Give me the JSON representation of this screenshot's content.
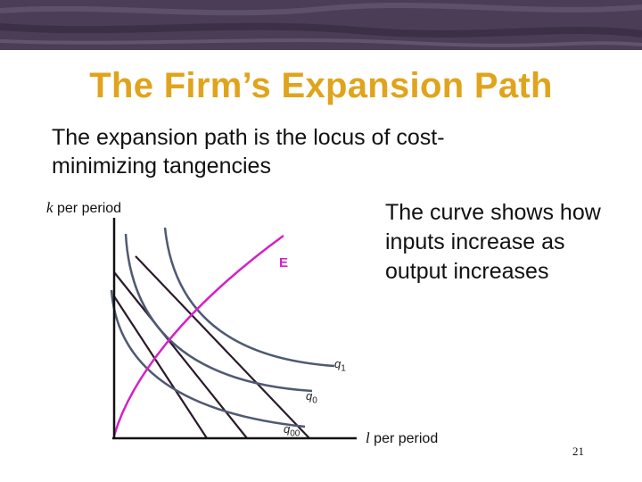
{
  "slide": {
    "title": "The Firm’s Expansion Path",
    "subtitle": "The expansion path is the locus of cost-minimizing tangencies",
    "callout": "The curve shows how inputs increase as output increases",
    "page_number": "21"
  },
  "diagram": {
    "y_axis_label_var": "k",
    "y_axis_label_rest": " per period",
    "x_axis_label_var": "l",
    "x_axis_label_rest": " per period",
    "expansion_path_label": "E",
    "isoquants": [
      {
        "var": "q",
        "sub": "00"
      },
      {
        "var": "q",
        "sub": "0"
      },
      {
        "var": "q",
        "sub": "1"
      }
    ],
    "colors": {
      "title": "#e0a41c",
      "isoquant": "#4f5a72",
      "isocost": "#2a1a2a",
      "expansion_path": "#d61fc8",
      "banner": "#4a3d55"
    }
  }
}
